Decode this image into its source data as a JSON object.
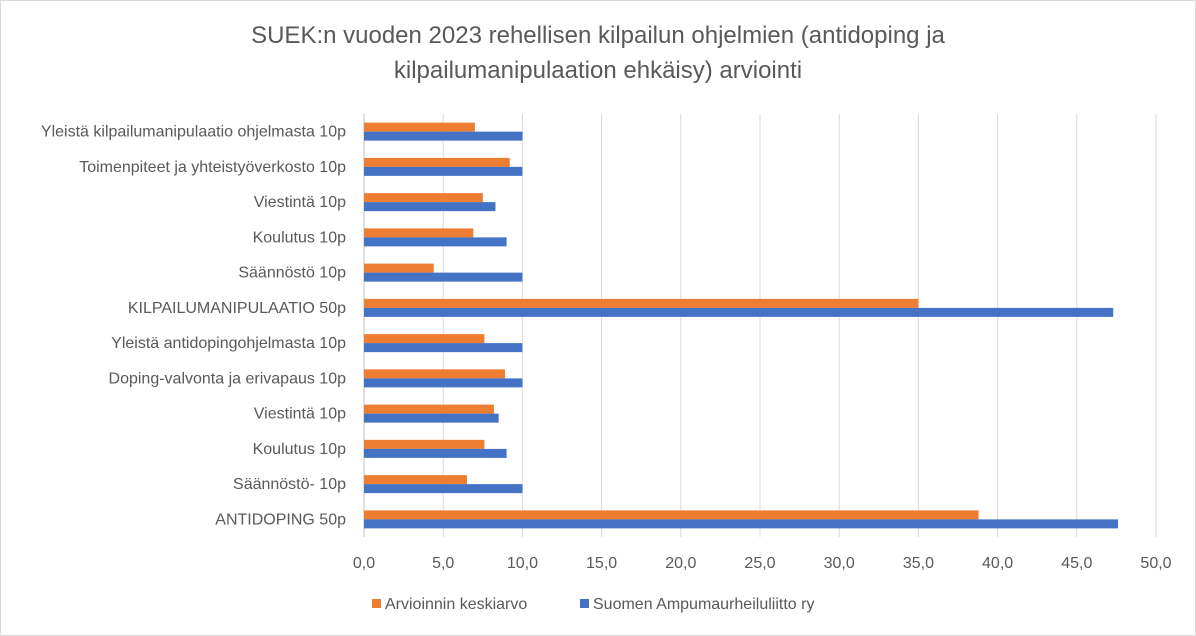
{
  "chart_data": {
    "type": "bar",
    "orientation": "horizontal",
    "title_lines": [
      "SUEK:n vuoden 2023 rehellisen kilpailun ohjelmien (antidoping ja",
      "kilpailumanipulaation ehkäisy) arviointi"
    ],
    "categories": [
      "Yleistä kilpailumanipulaatio ohjelmasta 10p",
      "Toimenpiteet ja yhteistyöverkosto 10p",
      "Viestintä 10p",
      "Koulutus 10p",
      "Säännöstö 10p",
      "KILPAILUMANIPULAATIO 50p",
      "Yleistä antidopingohjelmasta 10p",
      "Doping-valvonta ja erivapaus 10p",
      "Viestintä 10p",
      "Koulutus 10p",
      "Säännöstö- 10p",
      "ANTIDOPING 50p"
    ],
    "series": [
      {
        "name": "Arvioinnin keskiarvo",
        "color": "#ED7D31",
        "values": [
          7.0,
          9.2,
          7.5,
          6.9,
          4.4,
          35.0,
          7.6,
          8.9,
          8.2,
          7.6,
          6.5,
          38.8
        ]
      },
      {
        "name": "Suomen Ampumaurheiluliitto ry",
        "color": "#4472C4",
        "values": [
          10.0,
          10.0,
          8.3,
          9.0,
          10.0,
          47.3,
          10.0,
          10.0,
          8.5,
          9.0,
          10.0,
          47.6
        ]
      }
    ],
    "xlim": [
      0,
      50
    ],
    "x_ticks": [
      "0,0",
      "5,0",
      "10,0",
      "15,0",
      "20,0",
      "25,0",
      "30,0",
      "35,0",
      "40,0",
      "45,0",
      "50,0"
    ],
    "grid": true,
    "legend_position": "bottom",
    "xlabel": "",
    "ylabel": ""
  }
}
